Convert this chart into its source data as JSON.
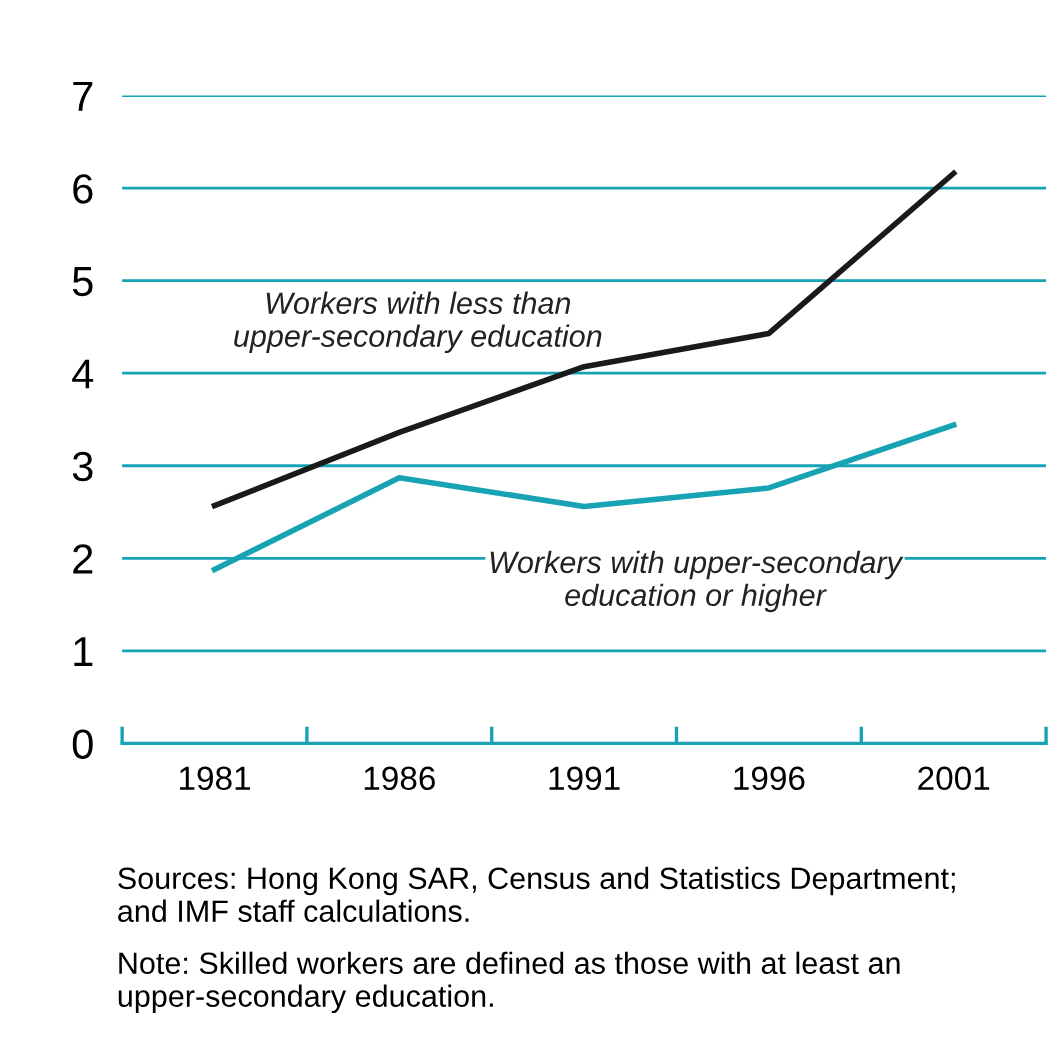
{
  "chart_data": {
    "type": "line",
    "categories": [
      "1981",
      "1986",
      "1991",
      "1996",
      "2001"
    ],
    "series": [
      {
        "name": "Workers with less than\nupper-secondary education",
        "color": "#1a1a1a",
        "values": [
          2.57,
          3.36,
          4.07,
          4.43,
          6.16
        ]
      },
      {
        "name": "Workers with upper-secondary\neducation or higher",
        "color": "#17a3b4",
        "values": [
          1.88,
          2.87,
          2.56,
          2.76,
          3.44
        ]
      }
    ],
    "ylim": [
      0,
      7
    ],
    "yticks": [
      0,
      1,
      2,
      3,
      4,
      5,
      6,
      7
    ],
    "grid": "y",
    "legend": false,
    "marker": "none",
    "line_style": "solid",
    "annotations": [
      "Sources: Hong Kong SAR, Census and Statistics Department;\nand IMF staff calculations.",
      "Note: Skilled workers are defined as those with at least an\nupper-secondary education."
    ]
  }
}
